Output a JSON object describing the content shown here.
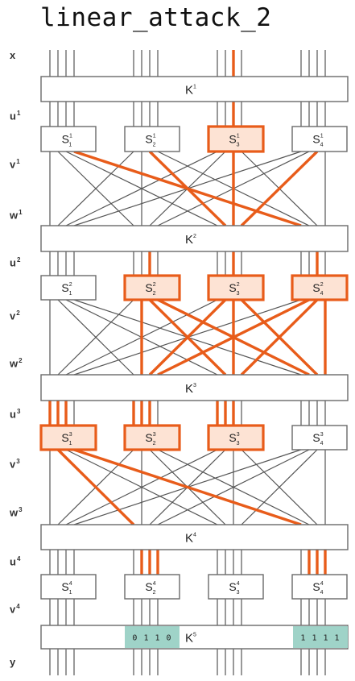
{
  "title": "linear_attack_2",
  "row_labels": [
    {
      "base": "x",
      "sup": ""
    },
    {
      "base": "u",
      "sup": "1"
    },
    {
      "base": "v",
      "sup": "1"
    },
    {
      "base": "w",
      "sup": "1"
    },
    {
      "base": "u",
      "sup": "2"
    },
    {
      "base": "v",
      "sup": "2"
    },
    {
      "base": "w",
      "sup": "2"
    },
    {
      "base": "u",
      "sup": "3"
    },
    {
      "base": "v",
      "sup": "3"
    },
    {
      "base": "w",
      "sup": "3"
    },
    {
      "base": "u",
      "sup": "4"
    },
    {
      "base": "v",
      "sup": "4"
    },
    {
      "base": "y",
      "sup": ""
    }
  ],
  "keys": [
    {
      "base": "K",
      "sup": "1"
    },
    {
      "base": "K",
      "sup": "2"
    },
    {
      "base": "K",
      "sup": "3"
    },
    {
      "base": "K",
      "sup": "4"
    },
    {
      "base": "K",
      "sup": "5"
    }
  ],
  "rounds": [
    {
      "boxes": [
        {
          "sup": "1",
          "sub": "1",
          "active": false
        },
        {
          "sup": "1",
          "sub": "2",
          "active": false
        },
        {
          "sup": "1",
          "sub": "3",
          "active": true
        },
        {
          "sup": "1",
          "sub": "4",
          "active": false
        }
      ]
    },
    {
      "boxes": [
        {
          "sup": "2",
          "sub": "1",
          "active": false
        },
        {
          "sup": "2",
          "sub": "2",
          "active": true
        },
        {
          "sup": "2",
          "sub": "3",
          "active": true
        },
        {
          "sup": "2",
          "sub": "4",
          "active": true
        }
      ]
    },
    {
      "boxes": [
        {
          "sup": "3",
          "sub": "1",
          "active": true
        },
        {
          "sup": "3",
          "sub": "2",
          "active": true
        },
        {
          "sup": "3",
          "sub": "3",
          "active": true
        },
        {
          "sup": "3",
          "sub": "4",
          "active": false
        }
      ]
    },
    {
      "boxes": [
        {
          "sup": "4",
          "sub": "1",
          "active": false
        },
        {
          "sup": "4",
          "sub": "2",
          "active": false
        },
        {
          "sup": "4",
          "sub": "3",
          "active": false
        },
        {
          "sup": "4",
          "sub": "4",
          "active": false
        }
      ]
    }
  ],
  "active_bits": {
    "x": [
      10
    ],
    "w1": [
      9,
      10,
      11,
      12
    ],
    "u2": [
      6,
      10,
      14
    ],
    "w2": [
      5,
      6,
      7,
      9,
      10,
      11,
      13,
      14,
      15
    ],
    "u3": [
      0,
      1,
      2,
      4,
      5,
      6,
      8,
      9,
      10
    ],
    "w3": [
      4,
      12
    ],
    "u4": [
      5,
      6,
      7,
      13,
      14,
      15
    ]
  },
  "bit_groups": [
    {
      "bits": "0 1 1 0",
      "block": 2
    },
    {
      "bits": "1 1 1 1",
      "block": 4
    }
  ],
  "colors": {
    "active": "#e85c1a",
    "active_fill": "#fde3d4",
    "wire": "#555555",
    "bits_bg": "#9fd3c8"
  },
  "s_letter": "S"
}
